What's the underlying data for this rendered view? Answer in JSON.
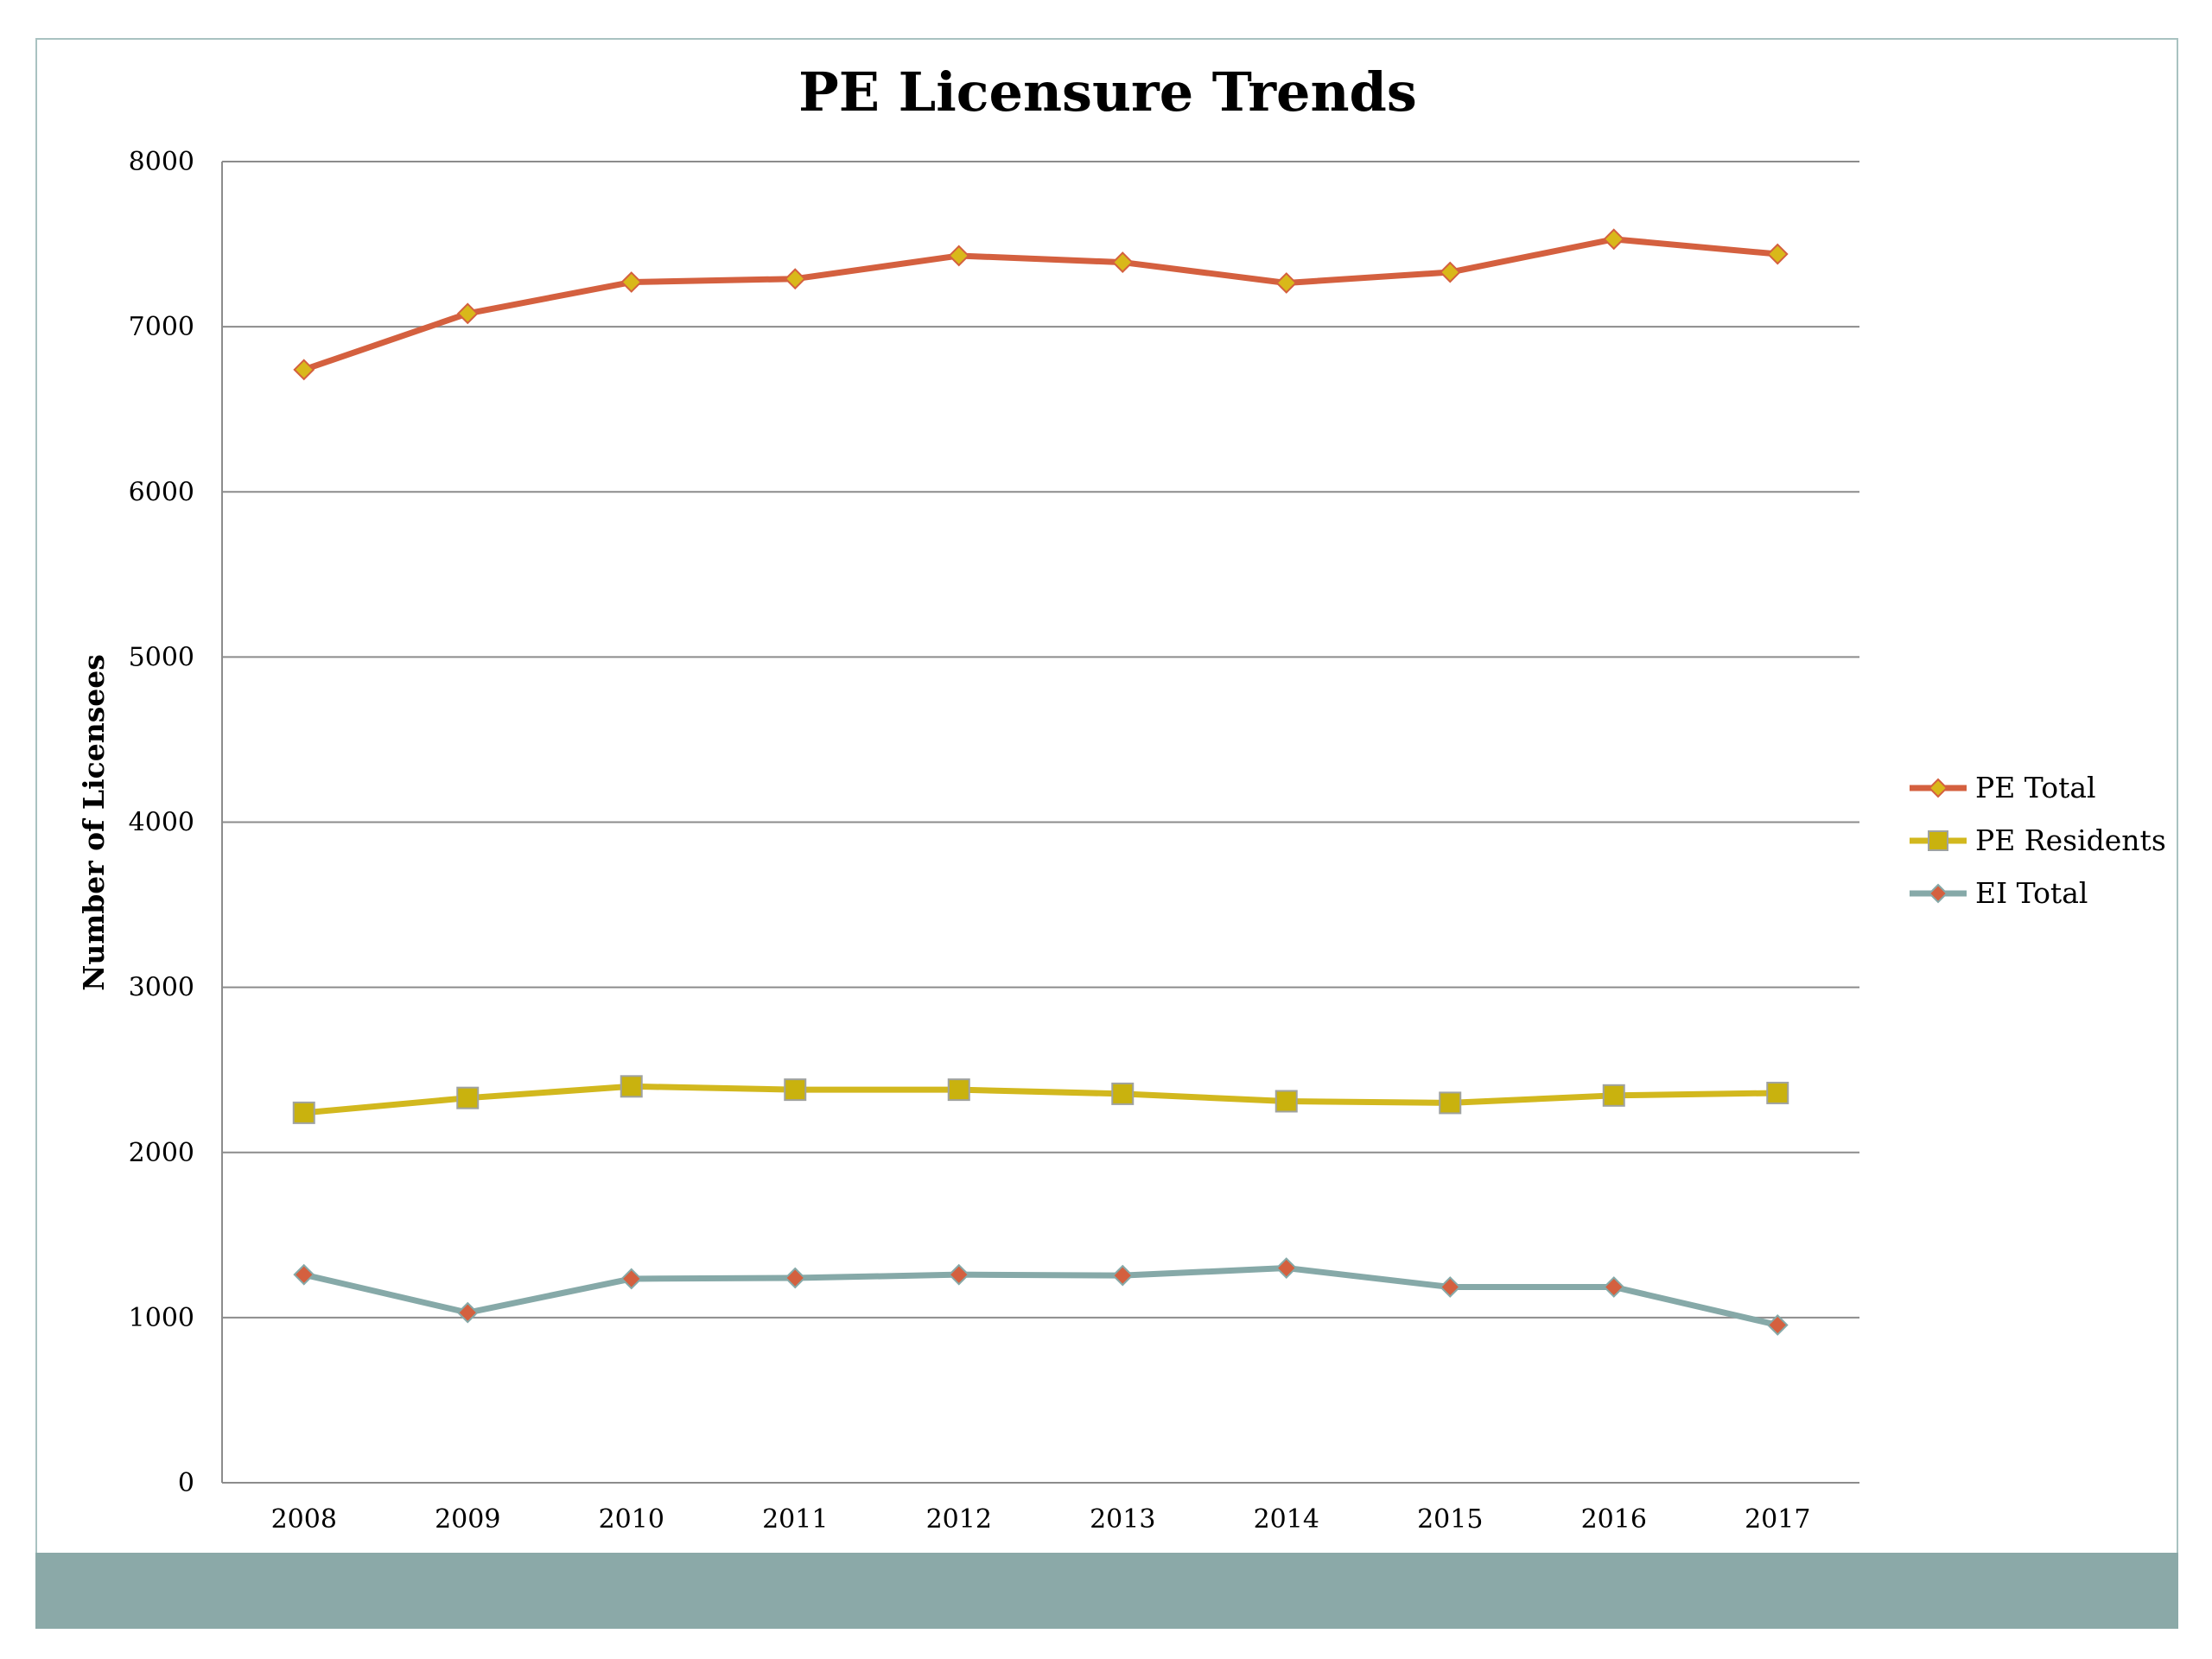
{
  "chart_data": {
    "type": "line",
    "title": "PE Licensure Trends",
    "xlabel": "",
    "ylabel": "Number of Licensees",
    "categories": [
      "2008",
      "2009",
      "2010",
      "2011",
      "2012",
      "2013",
      "2014",
      "2015",
      "2016",
      "2017"
    ],
    "ylim": [
      0,
      8000
    ],
    "yticks": [
      0,
      1000,
      2000,
      3000,
      4000,
      5000,
      6000,
      7000,
      8000
    ],
    "ytick_labels": [
      "0",
      "1000",
      "2000",
      "3000",
      "4000",
      "5000",
      "6000",
      "7000",
      "8000"
    ],
    "grid": true,
    "legend_position": "right",
    "series": [
      {
        "name": "PE Total",
        "values": [
          6740,
          7080,
          7270,
          7290,
          7430,
          7390,
          7265,
          7330,
          7530,
          7440
        ],
        "color": "#d4603f",
        "marker": "diamond",
        "marker_color": "#d9b81a"
      },
      {
        "name": "PE Residents",
        "values": [
          2240,
          2330,
          2400,
          2380,
          2380,
          2355,
          2310,
          2300,
          2345,
          2360
        ],
        "color": "#d2b81e",
        "marker": "square",
        "marker_color": "#c9b20e"
      },
      {
        "name": "EI Total",
        "values": [
          1260,
          1030,
          1235,
          1240,
          1260,
          1255,
          1300,
          1185,
          1185,
          955
        ],
        "color": "#86a9a8",
        "marker": "diamond",
        "marker_color": "#d4603f"
      }
    ]
  },
  "colors": {
    "footer_band": "#8ba9a8",
    "frame_border": "#a9c2c1",
    "gridline": "#8c8c8c"
  }
}
